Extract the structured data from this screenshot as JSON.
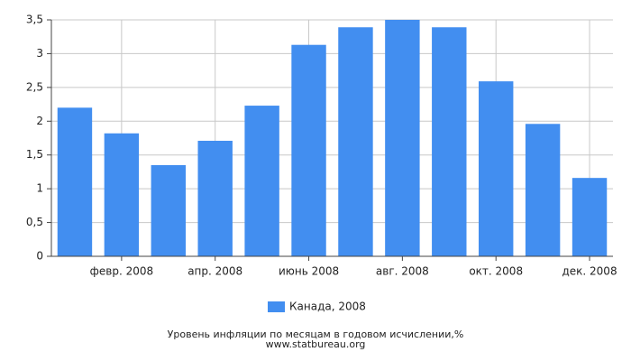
{
  "chart_data": {
    "type": "bar",
    "title": "Уровень инфляции по месяцам в годовом исчислении,%",
    "subtitle": "www.statbureau.org",
    "categories": [
      null,
      "февр. 2008",
      null,
      "апр. 2008",
      null,
      "июнь 2008",
      null,
      "авг. 2008",
      null,
      "окт. 2008",
      null,
      "дек. 2008"
    ],
    "series": [
      {
        "name": "Канада, 2008",
        "color": "#428ef0",
        "values": [
          2.2,
          1.82,
          1.35,
          1.71,
          2.23,
          3.13,
          3.39,
          3.5,
          3.39,
          2.59,
          1.96,
          1.16
        ]
      }
    ],
    "ylim": [
      0,
      3.5
    ],
    "yticks": [
      0,
      {
        "value": 0.5,
        "label": "0,5"
      },
      1,
      {
        "value": 1.5,
        "label": "1,5"
      },
      2,
      {
        "value": 2.5,
        "label": "2,5"
      },
      3,
      {
        "value": 3.5,
        "label": "3,5"
      }
    ],
    "grid": true,
    "legend": "bottom"
  }
}
